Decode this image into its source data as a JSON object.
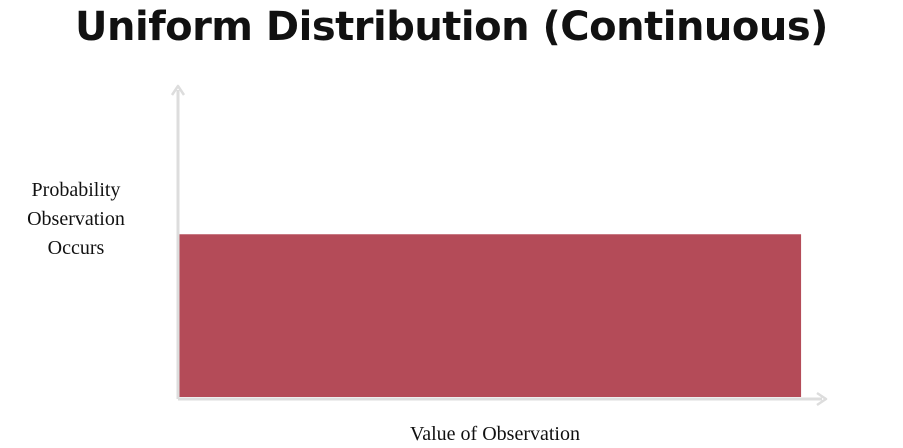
{
  "chart_data": {
    "type": "area",
    "title": "Uniform Distribution (Continuous)",
    "ylabel_lines": [
      "Probability",
      "Observation",
      "Occurs"
    ],
    "xlabel": "Value of Observation",
    "x": [
      0,
      1
    ],
    "values": [
      1,
      1
    ],
    "xlim": [
      0,
      1.04
    ],
    "ylim": [
      0,
      1.9
    ],
    "fill_color": "#b44b58",
    "axis_color": "#dddddd",
    "grid": false,
    "ticks": false
  }
}
